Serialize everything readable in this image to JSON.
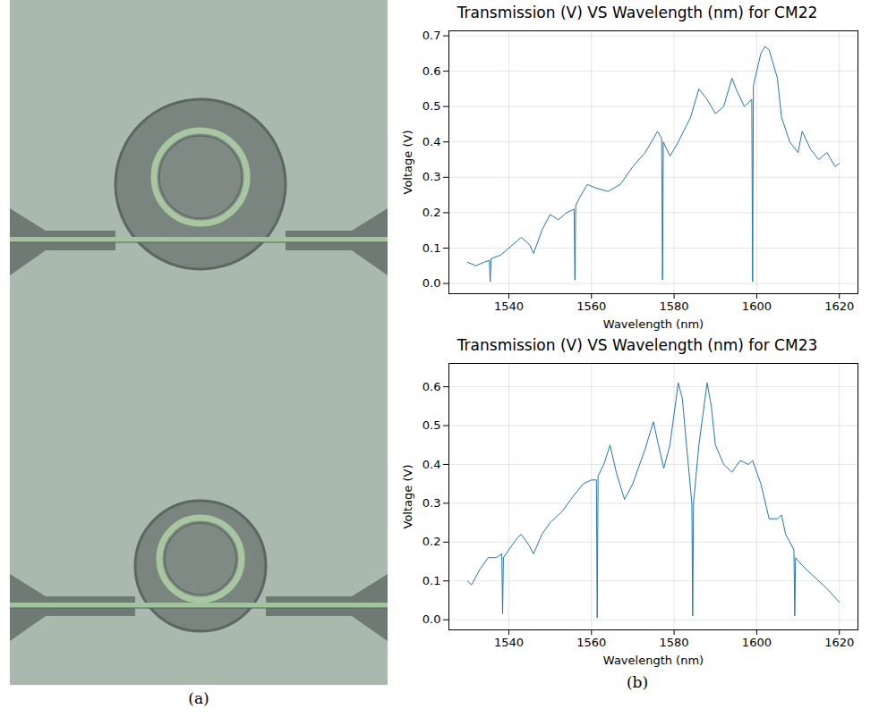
{
  "panel_labels": [
    "(a)",
    "(b)"
  ],
  "chart_data": [
    {
      "type": "line",
      "title": "Transmission (V) VS Wavelength (nm) for CM22",
      "x_label": "Wavelength (nm)",
      "y_label": "Voltage (V)",
      "color": "#1f77b4",
      "grid": true,
      "xlim": [
        1525.5,
        1624.5
      ],
      "xticks": [
        1540,
        1560,
        1580,
        1600,
        1620
      ],
      "ylim": [
        -0.029,
        0.714
      ],
      "yticks": [
        {
          "value": 0,
          "label": "0.0"
        },
        0.1,
        0.2,
        0.3,
        0.4,
        0.5,
        0.6,
        0.7
      ],
      "x": [
        1530,
        1532,
        1534,
        1535.3,
        1535.5,
        1535.7,
        1538,
        1541,
        1543,
        1545,
        1546,
        1548,
        1550,
        1552,
        1554,
        1555.8,
        1556.0,
        1556.2,
        1557,
        1559,
        1561,
        1564,
        1567,
        1570,
        1573,
        1576,
        1577.0,
        1577.2,
        1577.4,
        1579,
        1581,
        1584,
        1586,
        1588,
        1590,
        1592,
        1594,
        1595,
        1597,
        1598.8,
        1599.0,
        1599.2,
        1601,
        1602,
        1603,
        1605,
        1606,
        1608,
        1610,
        1611,
        1613,
        1615,
        1617,
        1619,
        1620
      ],
      "values": [
        0.06,
        0.05,
        0.06,
        0.065,
        0.005,
        0.07,
        0.08,
        0.11,
        0.13,
        0.11,
        0.085,
        0.15,
        0.195,
        0.18,
        0.2,
        0.21,
        0.01,
        0.22,
        0.24,
        0.28,
        0.27,
        0.26,
        0.28,
        0.33,
        0.37,
        0.43,
        0.41,
        0.01,
        0.4,
        0.36,
        0.4,
        0.47,
        0.55,
        0.52,
        0.48,
        0.5,
        0.58,
        0.55,
        0.5,
        0.52,
        0.005,
        0.56,
        0.65,
        0.67,
        0.66,
        0.58,
        0.47,
        0.4,
        0.37,
        0.43,
        0.38,
        0.35,
        0.37,
        0.33,
        0.34
      ]
    },
    {
      "type": "line",
      "title": "Transmission (V) VS Wavelength (nm) for CM23",
      "x_label": "Wavelength (nm)",
      "y_label": "Voltage (V)",
      "color": "#1f77b4",
      "grid": true,
      "xlim": [
        1525.5,
        1624.5
      ],
      "xticks": [
        1540,
        1560,
        1580,
        1600,
        1620
      ],
      "ylim": [
        -0.026,
        0.66
      ],
      "yticks": [
        {
          "value": 0,
          "label": "0.0"
        },
        0.1,
        0.2,
        0.3,
        0.4,
        0.5,
        0.6
      ],
      "x": [
        1530,
        1531,
        1533,
        1535,
        1537,
        1538.3,
        1538.5,
        1538.7,
        1540,
        1542,
        1543,
        1545,
        1546,
        1548,
        1550,
        1553,
        1555,
        1558,
        1560,
        1561.2,
        1561.4,
        1561.6,
        1563,
        1564.5,
        1566,
        1568,
        1570,
        1573,
        1575,
        1576,
        1577.5,
        1579,
        1581,
        1582,
        1583,
        1584.3,
        1584.5,
        1584.7,
        1586,
        1588,
        1589,
        1590,
        1592,
        1594,
        1596,
        1598,
        1599,
        1601,
        1603,
        1605,
        1606,
        1607,
        1609.0,
        1609.2,
        1609.4,
        1611,
        1614,
        1617,
        1620
      ],
      "values": [
        0.1,
        0.09,
        0.13,
        0.16,
        0.16,
        0.17,
        0.015,
        0.16,
        0.18,
        0.21,
        0.22,
        0.19,
        0.17,
        0.22,
        0.25,
        0.28,
        0.31,
        0.35,
        0.36,
        0.36,
        0.005,
        0.37,
        0.4,
        0.45,
        0.38,
        0.31,
        0.35,
        0.44,
        0.51,
        0.46,
        0.39,
        0.45,
        0.61,
        0.57,
        0.45,
        0.3,
        0.01,
        0.3,
        0.45,
        0.61,
        0.55,
        0.45,
        0.4,
        0.38,
        0.41,
        0.4,
        0.41,
        0.35,
        0.26,
        0.26,
        0.27,
        0.22,
        0.18,
        0.01,
        0.16,
        0.14,
        0.11,
        0.08,
        0.045
      ]
    }
  ]
}
